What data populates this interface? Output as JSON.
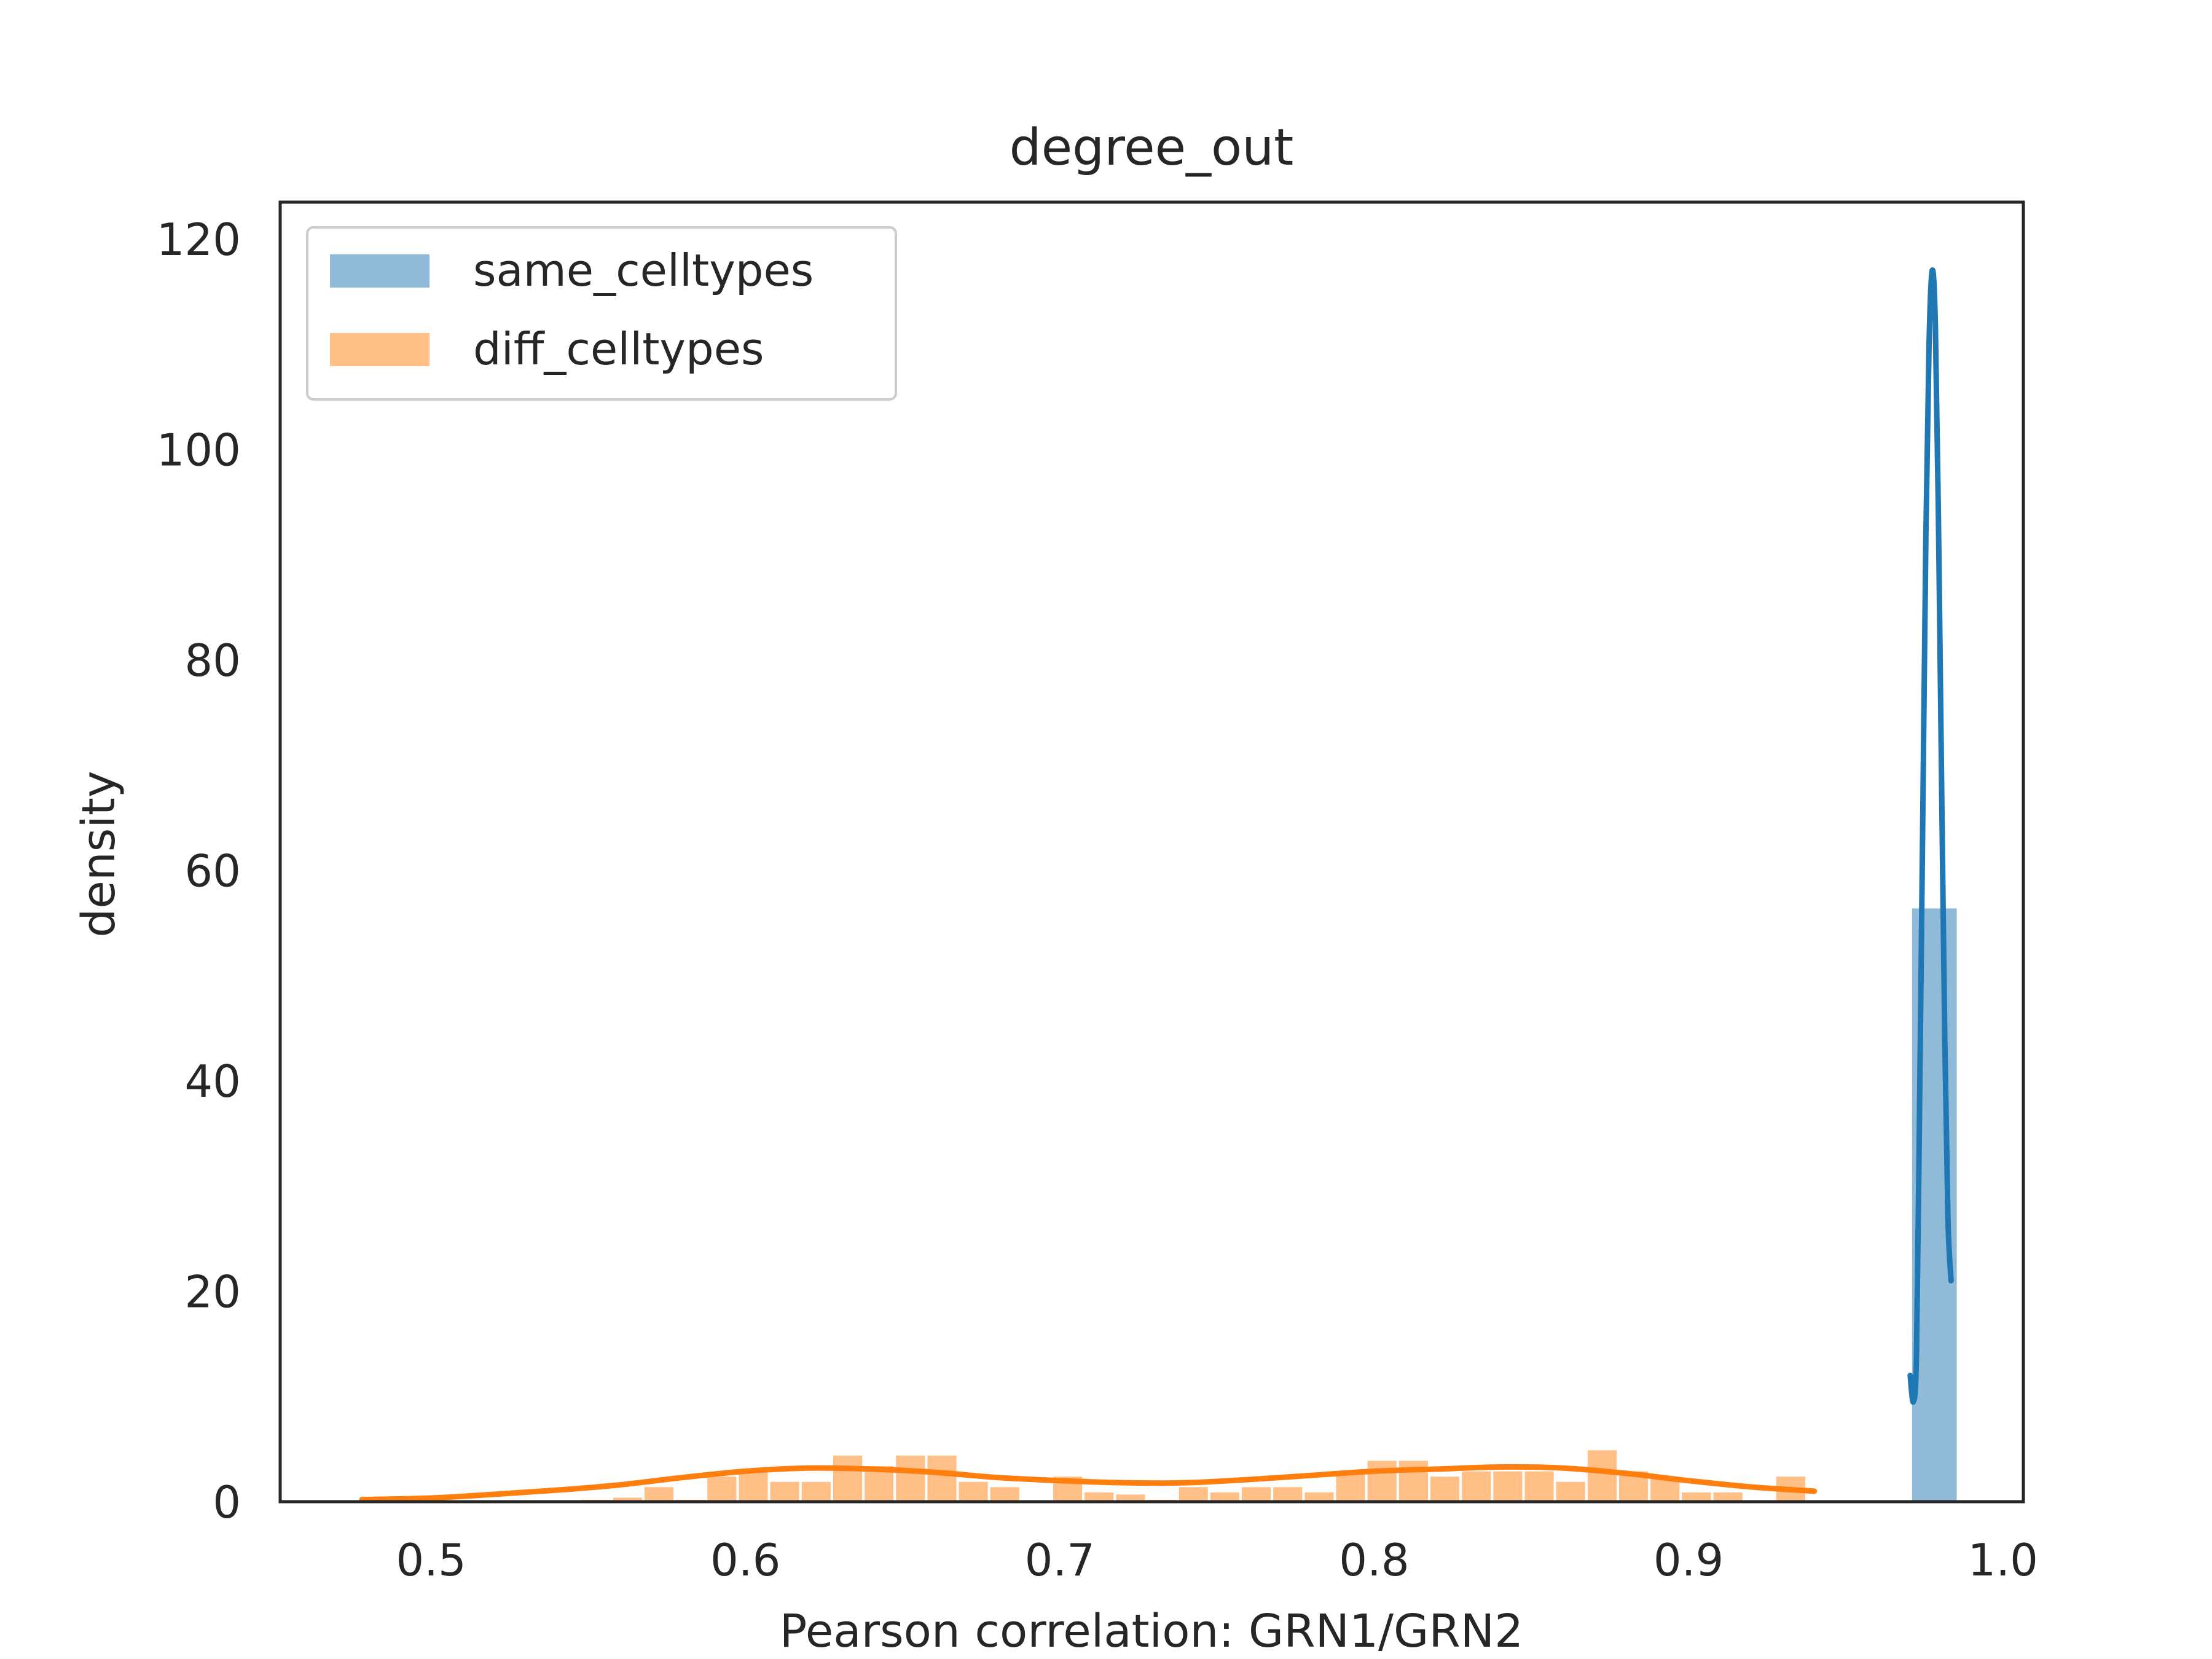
{
  "chart_data": {
    "type": "histogram",
    "title": "degree_out",
    "xlabel": "Pearson correlation: GRN1/GRN2",
    "ylabel": "density",
    "xlim": [
      0.452,
      1.0065
    ],
    "ylim": [
      0,
      123.5
    ],
    "x_ticks": [
      0.5,
      0.6,
      0.7,
      0.8,
      0.9,
      1.0
    ],
    "x_tick_labels": [
      "0.5",
      "0.6",
      "0.7",
      "0.8",
      "0.9",
      "1.0"
    ],
    "y_ticks": [
      0,
      20,
      40,
      60,
      80,
      100,
      120
    ],
    "y_tick_labels": [
      "0",
      "20",
      "40",
      "60",
      "80",
      "100",
      "120"
    ],
    "grid": false,
    "legend_position": "upper left",
    "series": [
      {
        "name": "same_celltypes",
        "color": "#1f77b4",
        "bar_alpha": 0.5,
        "bins": [
          [
            0.9707,
            0.9857,
            56.5
          ]
        ],
        "kde": [
          [
            0.9705,
            12
          ],
          [
            0.9715,
            9.5
          ],
          [
            0.9725,
            14
          ],
          [
            0.9735,
            38
          ],
          [
            0.9745,
            65
          ],
          [
            0.9755,
            92
          ],
          [
            0.9765,
            110
          ],
          [
            0.9775,
            117
          ],
          [
            0.9785,
            112
          ],
          [
            0.9795,
            93
          ],
          [
            0.9805,
            68
          ],
          [
            0.9815,
            44
          ],
          [
            0.9825,
            27
          ],
          [
            0.9835,
            21
          ]
        ]
      },
      {
        "name": "diff_celltypes",
        "color": "#ff7f0e",
        "bar_alpha": 0.5,
        "bin_start": 0.4775,
        "bin_width": 0.01,
        "bin_heights": [
          0,
          0,
          0,
          0,
          0,
          0,
          0,
          0.3,
          0.5,
          1.5,
          0.3,
          2.5,
          3,
          2,
          2,
          4.5,
          3.5,
          4.5,
          4.5,
          2,
          1.5,
          0.2,
          2.5,
          1,
          0.8,
          0.3,
          1.5,
          1,
          1.5,
          1.5,
          1,
          3,
          4,
          4,
          2.5,
          3,
          3,
          3,
          2,
          5,
          3,
          2.5,
          1,
          1,
          0,
          2.5
        ],
        "kde": [
          [
            0.478,
            0.2
          ],
          [
            0.5,
            0.35
          ],
          [
            0.52,
            0.7
          ],
          [
            0.54,
            1.1
          ],
          [
            0.56,
            1.6
          ],
          [
            0.58,
            2.3
          ],
          [
            0.6,
            2.9
          ],
          [
            0.62,
            3.2
          ],
          [
            0.64,
            3.1
          ],
          [
            0.66,
            2.8
          ],
          [
            0.68,
            2.3
          ],
          [
            0.7,
            2.0
          ],
          [
            0.72,
            1.8
          ],
          [
            0.74,
            1.8
          ],
          [
            0.76,
            2.1
          ],
          [
            0.78,
            2.5
          ],
          [
            0.8,
            2.9
          ],
          [
            0.82,
            3.1
          ],
          [
            0.84,
            3.3
          ],
          [
            0.86,
            3.2
          ],
          [
            0.88,
            2.7
          ],
          [
            0.9,
            2.0
          ],
          [
            0.92,
            1.4
          ],
          [
            0.94,
            1.0
          ]
        ]
      }
    ]
  }
}
